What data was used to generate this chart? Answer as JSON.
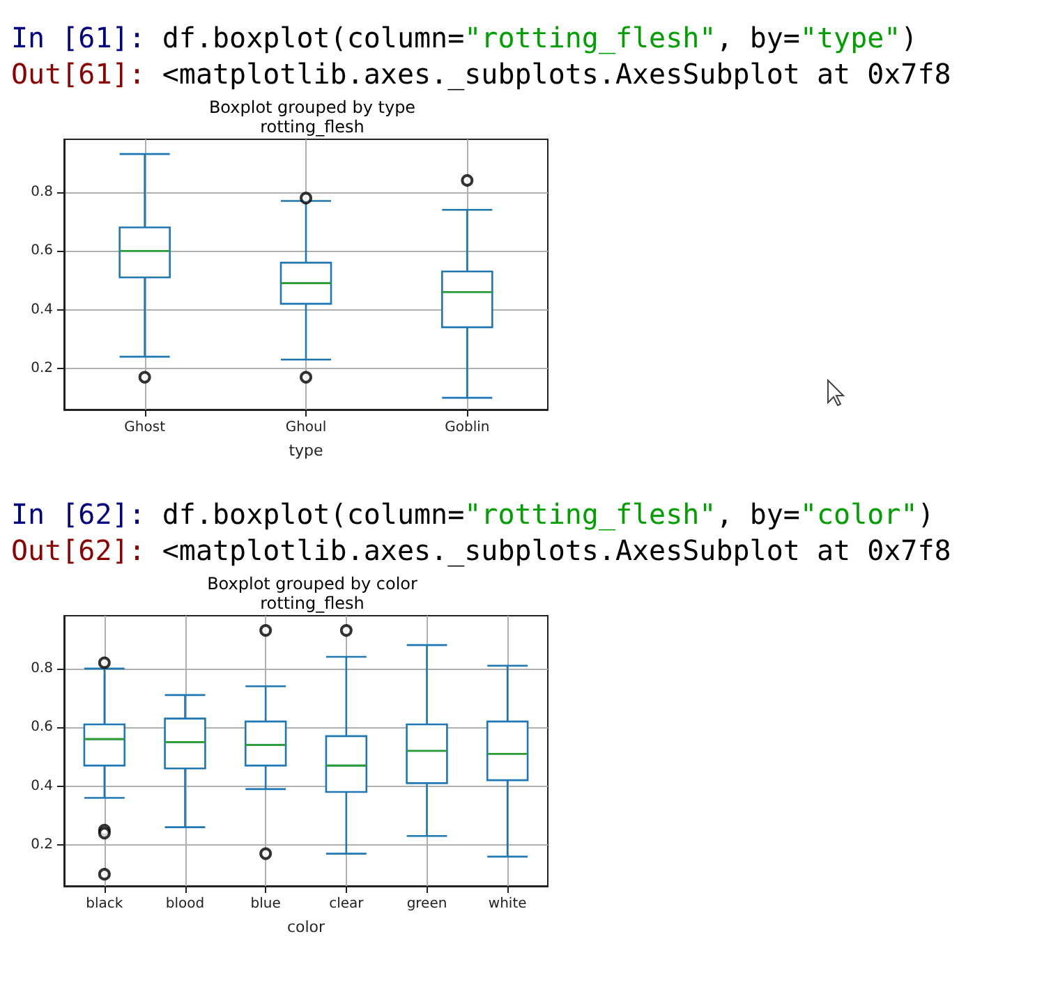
{
  "chart_data": [
    {
      "type": "box",
      "title": "Boxplot grouped by type",
      "subtitle": "rotting_flesh",
      "xlabel": "type",
      "annotations": [
        "In [61]: df.boxplot(column=\"rotting_flesh\", by=\"type\")",
        "Out[61]: <matplotlib.axes._subplots.AxesSubplot at 0x7f8"
      ],
      "categories": [
        "Ghost",
        "Ghoul",
        "Goblin"
      ],
      "color": "#1f77b4",
      "marker": "circle",
      "grid": true,
      "ylim": [
        0.06,
        0.98
      ],
      "yticks": [
        0.2,
        0.4,
        0.6,
        0.8
      ],
      "boxes": [
        {
          "low": 0.24,
          "q1": 0.51,
          "median": 0.6,
          "q3": 0.68,
          "high": 0.93,
          "outliers": [
            0.17
          ]
        },
        {
          "low": 0.23,
          "q1": 0.42,
          "median": 0.49,
          "q3": 0.56,
          "high": 0.77,
          "outliers": [
            0.78,
            0.17
          ]
        },
        {
          "low": 0.1,
          "q1": 0.34,
          "median": 0.46,
          "q3": 0.53,
          "high": 0.74,
          "outliers": [
            0.84
          ]
        }
      ]
    },
    {
      "type": "box",
      "title": "Boxplot grouped by color",
      "subtitle": "rotting_flesh",
      "xlabel": "color",
      "annotations": [
        "In [62]: df.boxplot(column=\"rotting_flesh\", by=\"color\")",
        "Out[62]: <matplotlib.axes._subplots.AxesSubplot at 0x7f8"
      ],
      "categories": [
        "black",
        "blood",
        "blue",
        "clear",
        "green",
        "white"
      ],
      "color": "#1f77b4",
      "marker": "circle",
      "grid": true,
      "ylim": [
        0.06,
        0.98
      ],
      "yticks": [
        0.2,
        0.4,
        0.6,
        0.8
      ],
      "boxes": [
        {
          "low": 0.36,
          "q1": 0.47,
          "median": 0.56,
          "q3": 0.61,
          "high": 0.8,
          "outliers": [
            0.82,
            0.25,
            0.24,
            0.1
          ]
        },
        {
          "low": 0.26,
          "q1": 0.46,
          "median": 0.55,
          "q3": 0.63,
          "high": 0.71
        },
        {
          "low": 0.39,
          "q1": 0.47,
          "median": 0.54,
          "q3": 0.62,
          "high": 0.74,
          "outliers": [
            0.93,
            0.17
          ]
        },
        {
          "low": 0.17,
          "q1": 0.38,
          "median": 0.47,
          "q3": 0.57,
          "high": 0.84,
          "outliers": [
            0.93
          ]
        },
        {
          "low": 0.23,
          "q1": 0.41,
          "median": 0.52,
          "q3": 0.61,
          "high": 0.88
        },
        {
          "low": 0.16,
          "q1": 0.42,
          "median": 0.51,
          "q3": 0.62,
          "high": 0.81
        }
      ]
    }
  ]
}
